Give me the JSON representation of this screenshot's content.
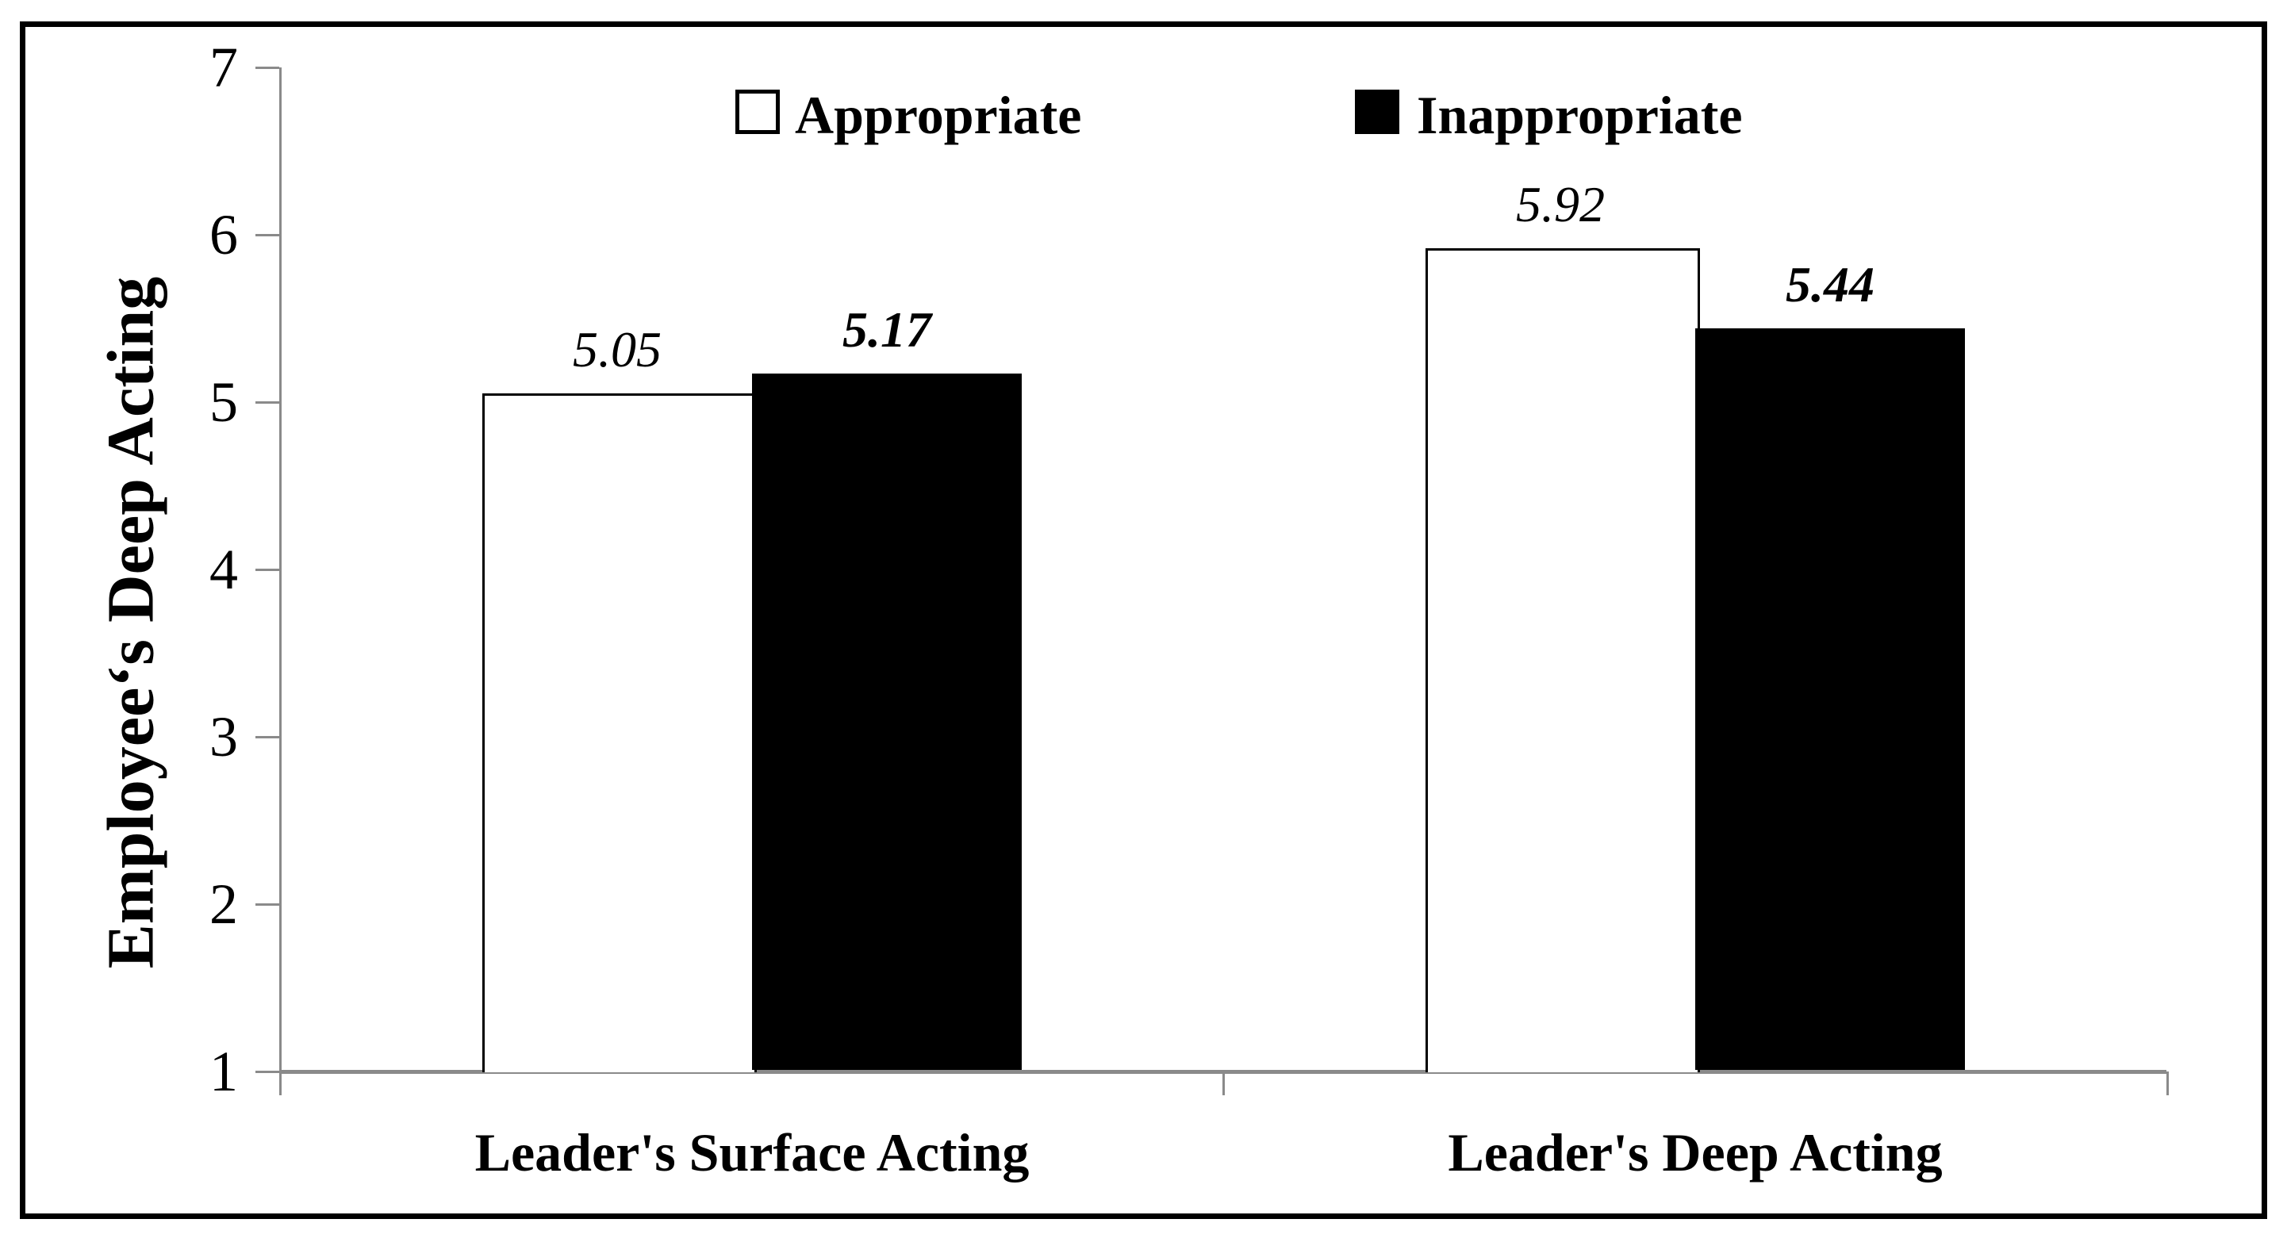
{
  "figure": {
    "background": "#ffffff",
    "frame_color": "#000000"
  },
  "chart_data": {
    "type": "bar",
    "title": "",
    "xlabel": "",
    "ylabel": "Employee‘s Deep Acting",
    "ylim": [
      1,
      7
    ],
    "yticks": [
      1,
      2,
      3,
      4,
      5,
      6,
      7
    ],
    "grid": false,
    "legend_position": "top",
    "axis_color": "#8a8a8a",
    "text_color": "#000000",
    "categories": [
      "Leader's Surface Acting",
      "Leader's Deep Acting"
    ],
    "series": [
      {
        "name": "Appropriate",
        "values": [
          5.05,
          5.92
        ],
        "labels": [
          "5.05",
          "5.92"
        ],
        "fill": "#ffffff",
        "border": "#000000",
        "label_style": "italic"
      },
      {
        "name": "Inappropriate",
        "values": [
          5.17,
          5.44
        ],
        "labels": [
          "5.17",
          "5.44"
        ],
        "fill": "#000000",
        "border": "#000000",
        "label_style": "bold-italic"
      }
    ]
  }
}
